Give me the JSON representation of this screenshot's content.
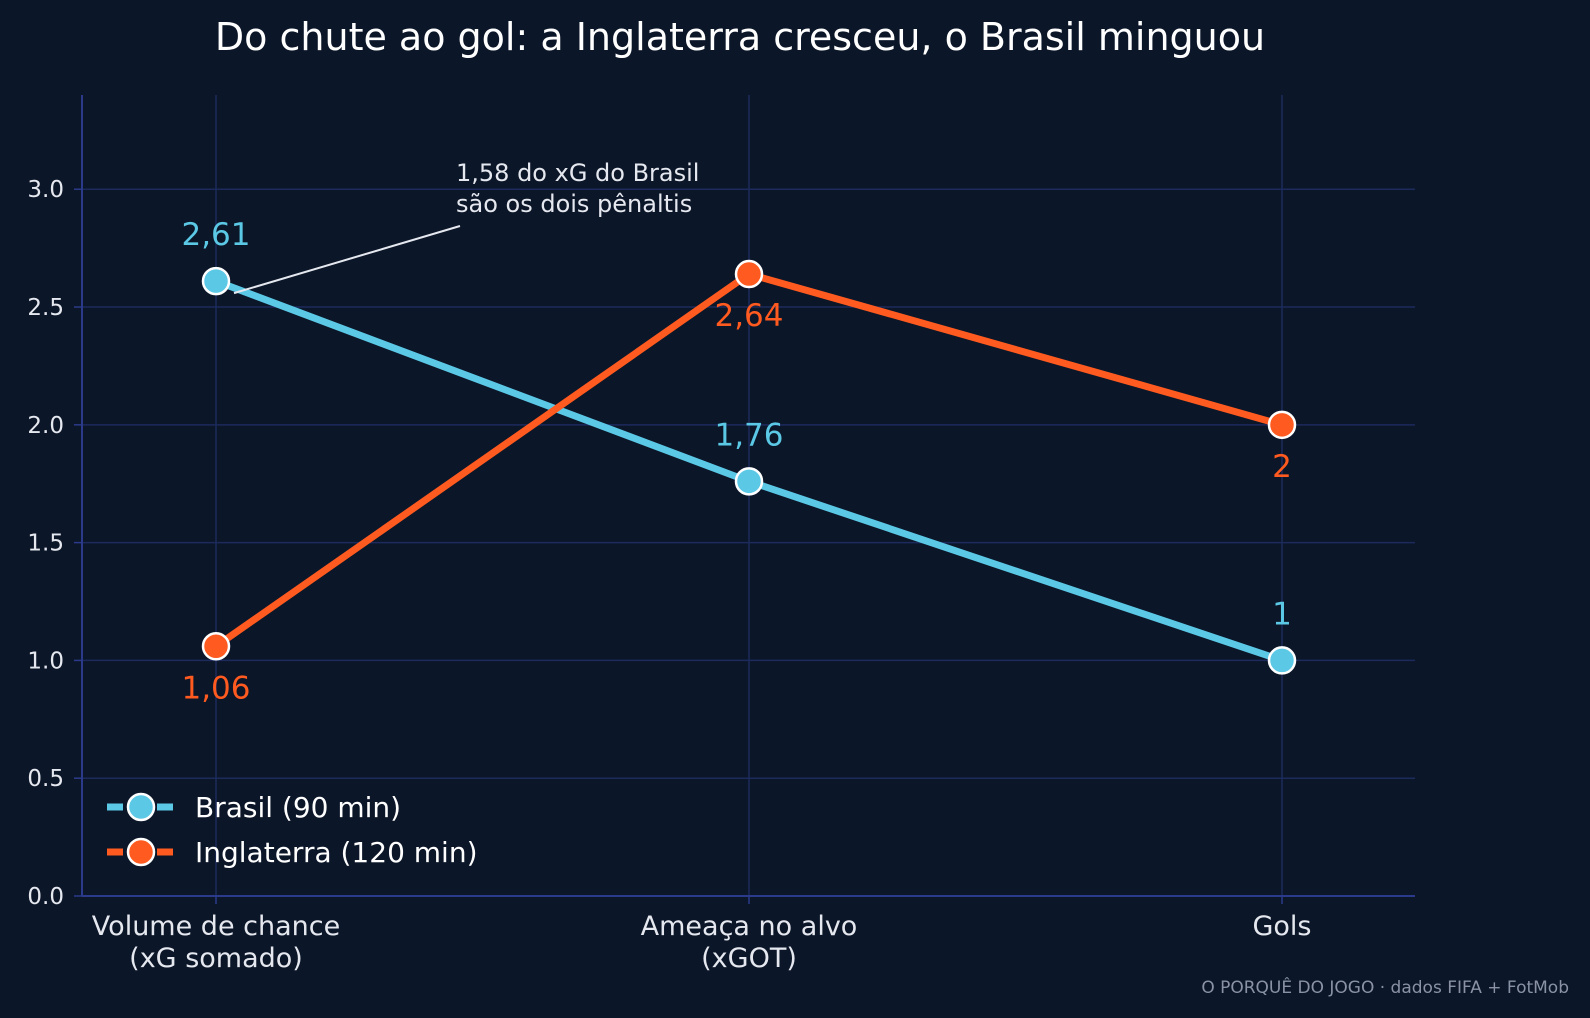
{
  "chart_data": {
    "type": "line",
    "title": "Do chute ao gol: a Inglaterra cresceu, o Brasil minguou",
    "categories": [
      "Volume de chance\n(xG somado)",
      "Ameaça no alvo\n(xGOT)",
      "Gols"
    ],
    "ylim": [
      0,
      3.4
    ],
    "yticks": [
      0.0,
      0.5,
      1.0,
      1.5,
      2.0,
      2.5,
      3.0
    ],
    "ytick_labels": [
      "0.0",
      "0.5",
      "1.0",
      "1.5",
      "2.0",
      "2.5",
      "3.0"
    ],
    "grid": true,
    "legend_position": "bottom-left",
    "series": [
      {
        "name": "Brasil (90 min)",
        "color": "#5bc8e6",
        "values": [
          2.61,
          1.76,
          1
        ],
        "value_labels": [
          "2,61",
          "1,76",
          "1"
        ],
        "label_placement": "above"
      },
      {
        "name": "Inglaterra (120 min)",
        "color": "#ff5a1f",
        "values": [
          1.06,
          2.64,
          2
        ],
        "value_labels": [
          "1,06",
          "2,64",
          "2"
        ],
        "label_placement": "below"
      }
    ],
    "annotation": {
      "lines": [
        "1,58 do xG do Brasil",
        "são os dois pênaltis"
      ],
      "target_series": 0,
      "target_index": 0
    },
    "source": "O PORQUÊ DO JOGO · dados FIFA + FotMob"
  }
}
